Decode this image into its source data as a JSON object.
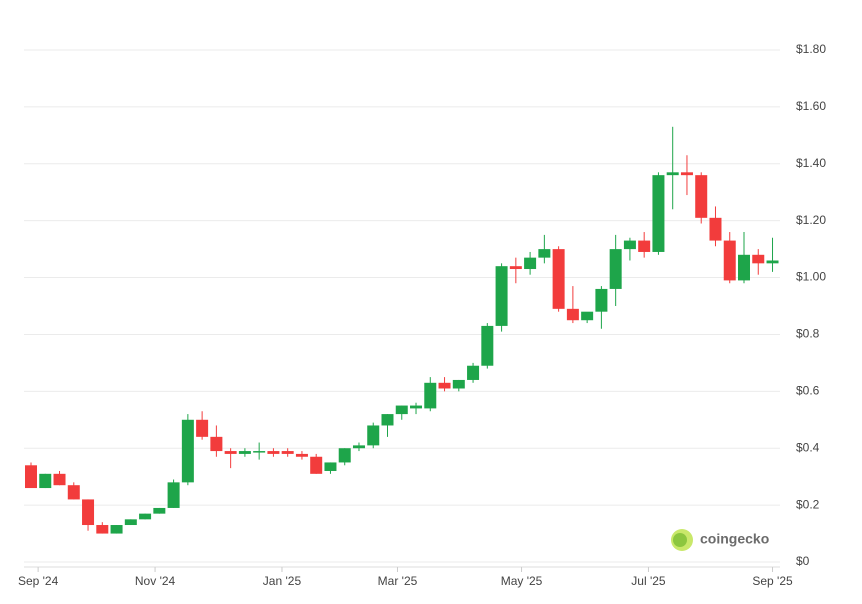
{
  "chart_data": {
    "type": "candlestick",
    "watermark": "coingecko",
    "categories": [
      null,
      null,
      null,
      null,
      null,
      null,
      null,
      null,
      null,
      null,
      null,
      null,
      null,
      null,
      null,
      null,
      null,
      null,
      null,
      null,
      null,
      null,
      null,
      null,
      null,
      null,
      null,
      null,
      null,
      null,
      null,
      null,
      null,
      null,
      null,
      null,
      null,
      null,
      null,
      null,
      null,
      null,
      null,
      null,
      null,
      null,
      null,
      null,
      null,
      null,
      null,
      null,
      null
    ],
    "open": [
      0.34,
      0.26,
      0.31,
      0.27,
      0.22,
      0.13,
      0.1,
      0.13,
      0.15,
      0.17,
      0.19,
      0.28,
      0.5,
      0.44,
      0.39,
      0.38,
      0.39,
      0.39,
      0.39,
      0.38,
      0.37,
      0.32,
      0.35,
      0.4,
      0.41,
      0.48,
      0.52,
      0.54,
      0.54,
      0.63,
      0.61,
      0.64,
      0.69,
      0.83,
      1.04,
      1.03,
      1.07,
      1.1,
      0.89,
      0.85,
      0.88,
      0.96,
      1.1,
      1.13,
      1.09,
      1.36,
      1.37,
      1.36,
      1.21,
      1.13,
      0.99,
      1.08,
      1.05
    ],
    "high": [
      0.35,
      0.31,
      0.32,
      0.28,
      0.22,
      0.14,
      0.13,
      0.15,
      0.17,
      0.19,
      0.29,
      0.52,
      0.53,
      0.48,
      0.4,
      0.4,
      0.42,
      0.4,
      0.4,
      0.39,
      0.38,
      0.35,
      0.4,
      0.42,
      0.49,
      0.52,
      0.55,
      0.56,
      0.65,
      0.65,
      0.64,
      0.7,
      0.84,
      1.05,
      1.07,
      1.09,
      1.15,
      1.11,
      0.97,
      0.87,
      0.97,
      1.15,
      1.14,
      1.16,
      1.37,
      1.53,
      1.43,
      1.37,
      1.25,
      1.16,
      1.16,
      1.1,
      1.14
    ],
    "low": [
      0.26,
      0.26,
      0.27,
      0.22,
      0.11,
      0.1,
      0.1,
      0.13,
      0.15,
      0.17,
      0.19,
      0.27,
      0.43,
      0.37,
      0.33,
      0.37,
      0.36,
      0.37,
      0.37,
      0.36,
      0.31,
      0.31,
      0.34,
      0.39,
      0.4,
      0.44,
      0.5,
      0.52,
      0.53,
      0.6,
      0.6,
      0.63,
      0.68,
      0.81,
      0.98,
      1.01,
      1.05,
      0.88,
      0.84,
      0.84,
      0.82,
      0.9,
      1.06,
      1.07,
      1.08,
      1.24,
      1.29,
      1.19,
      1.11,
      0.98,
      0.98,
      1.01,
      1.02
    ],
    "close": [
      0.26,
      0.31,
      0.27,
      0.22,
      0.13,
      0.1,
      0.13,
      0.15,
      0.17,
      0.19,
      0.28,
      0.5,
      0.44,
      0.39,
      0.38,
      0.39,
      0.39,
      0.38,
      0.38,
      0.37,
      0.31,
      0.35,
      0.4,
      0.41,
      0.48,
      0.52,
      0.55,
      0.55,
      0.63,
      0.61,
      0.64,
      0.69,
      0.83,
      1.04,
      1.03,
      1.07,
      1.1,
      0.89,
      0.85,
      0.88,
      0.96,
      1.1,
      1.13,
      1.09,
      1.36,
      1.37,
      1.36,
      1.21,
      1.13,
      0.99,
      1.08,
      1.05,
      1.06
    ],
    "up_color": "#1ea54a",
    "down_color": "#f23c3c",
    "ylim": [
      0,
      1.8
    ],
    "yticks": [
      {
        "value": 0,
        "label": "$0"
      },
      {
        "value": 0.2,
        "label": "$0.2"
      },
      {
        "value": 0.4,
        "label": "$0.4"
      },
      {
        "value": 0.6,
        "label": "$0.6"
      },
      {
        "value": 0.8,
        "label": "$0.8"
      },
      {
        "value": 1.0,
        "label": "$1.00"
      },
      {
        "value": 1.2,
        "label": "$1.20"
      },
      {
        "value": 1.4,
        "label": "$1.40"
      },
      {
        "value": 1.6,
        "label": "$1.60"
      },
      {
        "value": 1.8,
        "label": "$1.80"
      }
    ],
    "xticks": [
      {
        "value": 0.5,
        "label": "Sep '24"
      },
      {
        "value": 8.7,
        "label": "Nov '24"
      },
      {
        "value": 17.6,
        "label": "Jan '25"
      },
      {
        "value": 25.7,
        "label": "Mar '25"
      },
      {
        "value": 34.4,
        "label": "May '25"
      },
      {
        "value": 43.3,
        "label": "Jul '25"
      },
      {
        "value": 52,
        "label": "Sep '25"
      }
    ],
    "grid": true
  }
}
